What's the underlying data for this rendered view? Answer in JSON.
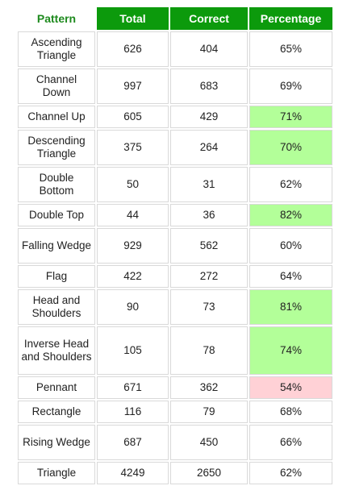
{
  "table": {
    "headers": {
      "pattern": "Pattern",
      "total": "Total",
      "correct": "Correct",
      "percentage": "Percentage"
    },
    "highlight_colors": {
      "good": "#b3ff99",
      "bad": "#ffd1d6",
      "header_green": "#0c9a0c"
    },
    "rows": [
      {
        "pattern": "Ascending Triangle",
        "total": "626",
        "correct": "404",
        "percentage": "65%",
        "highlight": ""
      },
      {
        "pattern": "Channel Down",
        "total": "997",
        "correct": "683",
        "percentage": "69%",
        "highlight": ""
      },
      {
        "pattern": "Channel Up",
        "total": "605",
        "correct": "429",
        "percentage": "71%",
        "highlight": "good"
      },
      {
        "pattern": "Descending Triangle",
        "total": "375",
        "correct": "264",
        "percentage": "70%",
        "highlight": "good"
      },
      {
        "pattern": "Double Bottom",
        "total": "50",
        "correct": "31",
        "percentage": "62%",
        "highlight": ""
      },
      {
        "pattern": "Double Top",
        "total": "44",
        "correct": "36",
        "percentage": "82%",
        "highlight": "good"
      },
      {
        "pattern": "Falling Wedge",
        "total": "929",
        "correct": "562",
        "percentage": "60%",
        "highlight": ""
      },
      {
        "pattern": "Flag",
        "total": "422",
        "correct": "272",
        "percentage": "64%",
        "highlight": ""
      },
      {
        "pattern": "Head and Shoulders",
        "total": "90",
        "correct": "73",
        "percentage": "81%",
        "highlight": "good"
      },
      {
        "pattern": "Inverse Head and Shoulders",
        "total": "105",
        "correct": "78",
        "percentage": "74%",
        "highlight": "good"
      },
      {
        "pattern": "Pennant",
        "total": "671",
        "correct": "362",
        "percentage": "54%",
        "highlight": "bad"
      },
      {
        "pattern": "Rectangle",
        "total": "116",
        "correct": "79",
        "percentage": "68%",
        "highlight": ""
      },
      {
        "pattern": "Rising Wedge",
        "total": "687",
        "correct": "450",
        "percentage": "66%",
        "highlight": ""
      },
      {
        "pattern": "Triangle",
        "total": "4249",
        "correct": "2650",
        "percentage": "62%",
        "highlight": ""
      }
    ]
  }
}
